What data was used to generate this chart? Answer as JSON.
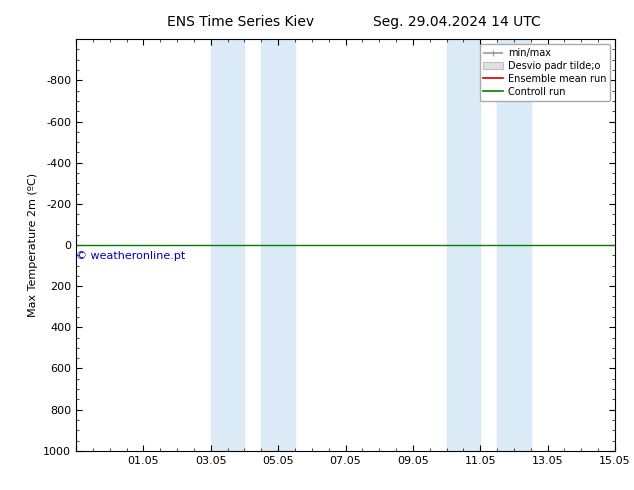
{
  "title_left": "ENS Time Series Kiev",
  "title_right": "Seg. 29.04.2024 14 UTC",
  "ylabel": "Max Temperature 2m (ºC)",
  "ylim": [
    1000,
    -1000
  ],
  "yticks": [
    -800,
    -600,
    -400,
    -200,
    0,
    200,
    400,
    600,
    800,
    1000
  ],
  "xlim": [
    0,
    16
  ],
  "xtick_positions": [
    0,
    2,
    4,
    6,
    8,
    10,
    12,
    14,
    16
  ],
  "xtick_labels": [
    "",
    "01.05",
    "03.05",
    "05.05",
    "07.05",
    "09.05",
    "11.05",
    "13.05",
    "15.05"
  ],
  "shaded_regions": [
    [
      4.0,
      5.0
    ],
    [
      5.5,
      6.5
    ],
    [
      11.0,
      12.0
    ],
    [
      12.5,
      13.5
    ]
  ],
  "shaded_color": "#dbeaf7",
  "green_line_y": 0,
  "green_line_color": "#008000",
  "watermark": "© weatheronline.pt",
  "watermark_color": "#0000bb",
  "legend_items": [
    {
      "label": "min/max",
      "color": "#999999",
      "lw": 1.2
    },
    {
      "label": "Desvio padr tilde;o",
      "color": "#cccccc",
      "lw": 8
    },
    {
      "label": "Ensemble mean run",
      "color": "#cc0000",
      "lw": 1.2
    },
    {
      "label": "Controll run",
      "color": "#008000",
      "lw": 1.2
    }
  ],
  "bg_color": "#ffffff",
  "font_size_title": 10,
  "font_size_axis": 8,
  "font_size_tick": 8,
  "font_size_legend": 7,
  "font_size_watermark": 8
}
